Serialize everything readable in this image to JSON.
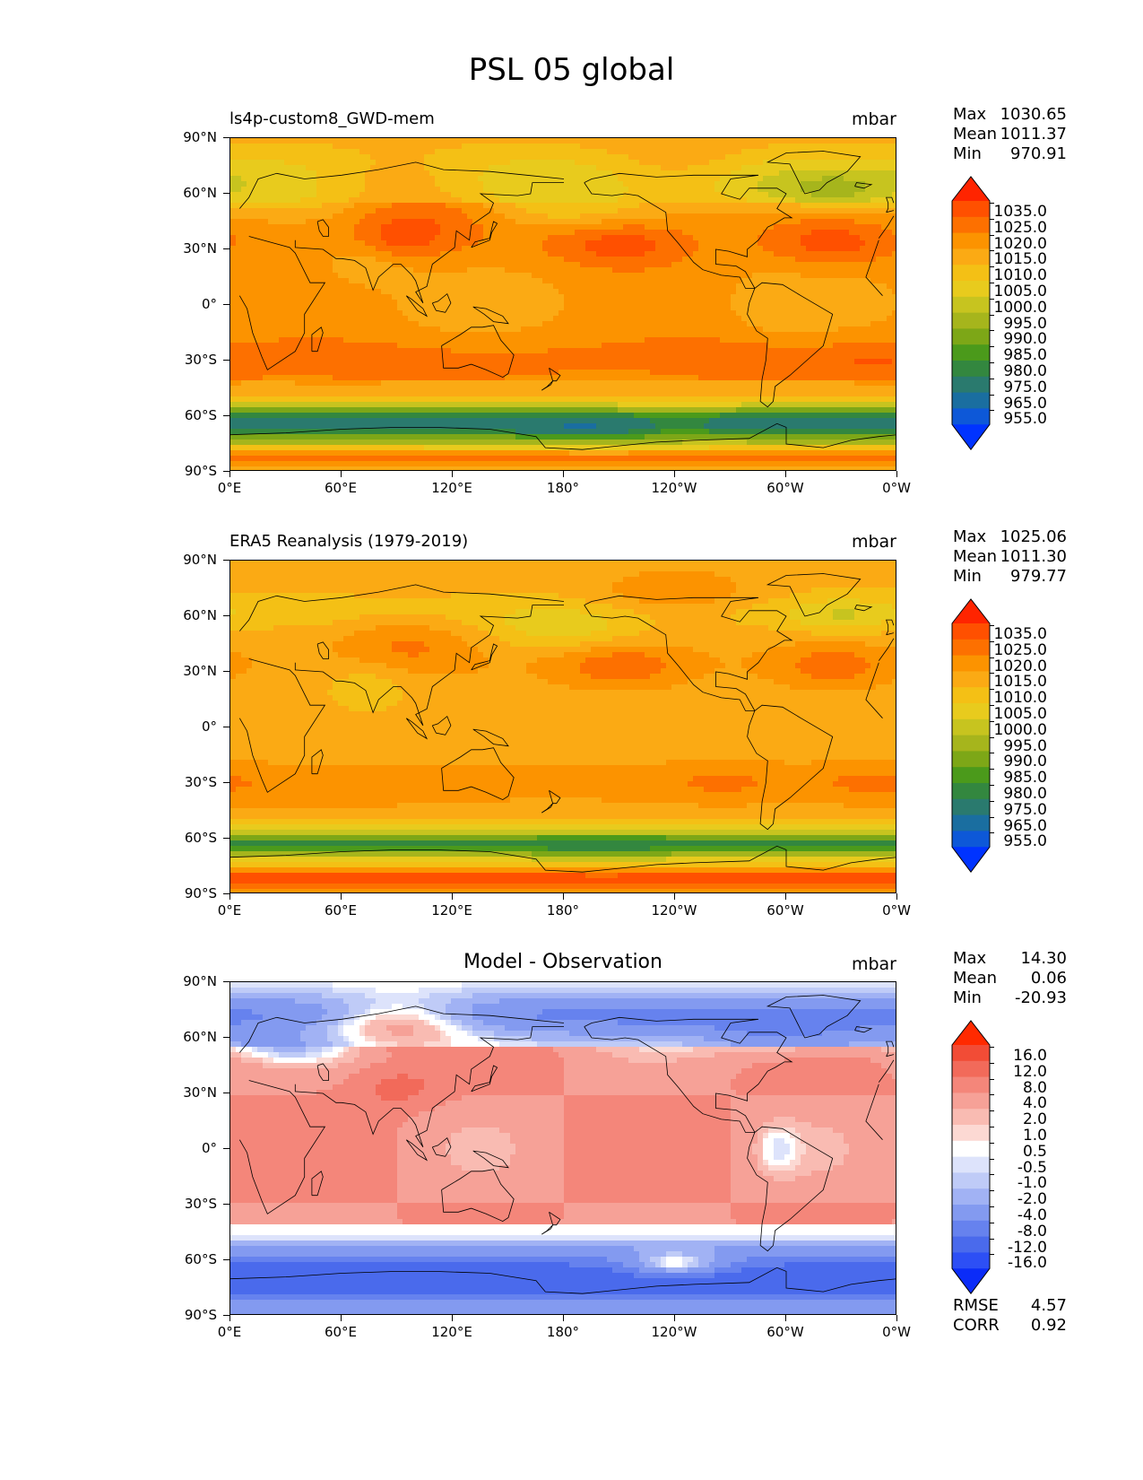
{
  "figure": {
    "title": "PSL 05 global"
  },
  "axes": {
    "lat_labels": [
      "90°N",
      "60°N",
      "30°N",
      "0°",
      "30°S",
      "60°S",
      "90°S"
    ],
    "lon_labels": [
      "0°E",
      "60°E",
      "120°E",
      "180°",
      "120°W",
      "60°W",
      "0°W"
    ]
  },
  "chart_data": [
    {
      "type": "heatmap",
      "title": "ls4p-custom8_GWD-mem",
      "units": "mbar",
      "stats": {
        "max_label": "Max",
        "max": "1030.65",
        "mean_label": "Mean",
        "mean": "1011.37",
        "min_label": "Min",
        "min": "970.91"
      },
      "colorbar": {
        "labels": [
          "1035.0",
          "1025.0",
          "1020.0",
          "1015.0",
          "1010.0",
          "1005.0",
          "1000.0",
          "995.0",
          "990.0",
          "985.0",
          "980.0",
          "975.0",
          "965.0",
          "955.0"
        ],
        "colors": [
          "#ff2400",
          "#ff5000",
          "#fd7000",
          "#fc9300",
          "#fbaa14",
          "#f4c015",
          "#e8cb1d",
          "#c7c41f",
          "#a6b51c",
          "#7da717",
          "#4b9a1b",
          "#33873f",
          "#2a7a6e",
          "#1a6ea0",
          "#0d58d8",
          "#0033ff"
        ]
      },
      "extend": "both",
      "field_model": "pressure_model"
    },
    {
      "type": "heatmap",
      "title": "ERA5 Reanalysis (1979-2019)",
      "units": "mbar",
      "stats": {
        "max_label": "Max",
        "max": "1025.06",
        "mean_label": "Mean",
        "mean": "1011.30",
        "min_label": "Min",
        "min": "979.77"
      },
      "colorbar": {
        "labels": [
          "1035.0",
          "1025.0",
          "1020.0",
          "1015.0",
          "1010.0",
          "1005.0",
          "1000.0",
          "995.0",
          "990.0",
          "985.0",
          "980.0",
          "975.0",
          "965.0",
          "955.0"
        ],
        "colors": [
          "#ff2400",
          "#ff5000",
          "#fd7000",
          "#fc9300",
          "#fbaa14",
          "#f4c015",
          "#e8cb1d",
          "#c7c41f",
          "#a6b51c",
          "#7da717",
          "#4b9a1b",
          "#33873f",
          "#2a7a6e",
          "#1a6ea0",
          "#0d58d8",
          "#0033ff"
        ]
      },
      "extend": "both",
      "field_model": "pressure_obs"
    },
    {
      "type": "heatmap",
      "title": "Model - Observation",
      "units": "mbar",
      "stats": {
        "max_label": "Max",
        "max": "14.30",
        "mean_label": "Mean",
        "mean": "0.06",
        "min_label": "Min",
        "min": "-20.93"
      },
      "metrics": {
        "rmse_label": "RMSE",
        "rmse": "4.57",
        "corr_label": "CORR",
        "corr": "0.92"
      },
      "colorbar": {
        "labels": [
          "16.0",
          "12.0",
          "8.0",
          "4.0",
          "2.0",
          "1.0",
          "0.5",
          "-0.5",
          "-1.0",
          "-2.0",
          "-4.0",
          "-8.0",
          "-12.0",
          "-16.0"
        ],
        "colors": [
          "#ff2a00",
          "#f24c36",
          "#f26a5a",
          "#f4867a",
          "#f6a197",
          "#f9bbb2",
          "#fcd9d3",
          "#ffffff",
          "#dde3fb",
          "#bfcbf7",
          "#a1b2f4",
          "#839af0",
          "#6682ee",
          "#4a6aec",
          "#2d4ff5",
          "#0b2cf8"
        ]
      },
      "extend": "both",
      "field_model": "difference"
    }
  ]
}
